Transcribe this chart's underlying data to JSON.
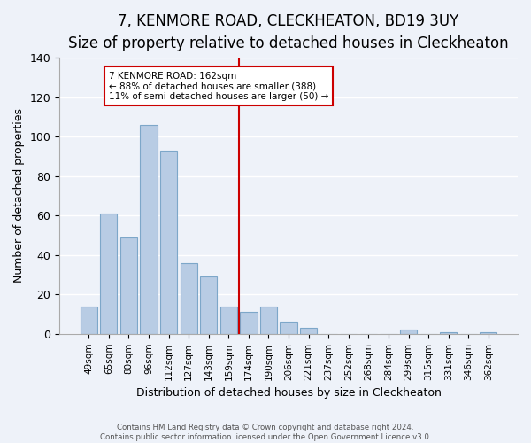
{
  "title": "7, KENMORE ROAD, CLECKHEATON, BD19 3UY",
  "subtitle": "Size of property relative to detached houses in Cleckheaton",
  "xlabel": "Distribution of detached houses by size in Cleckheaton",
  "ylabel": "Number of detached properties",
  "bar_labels": [
    "49sqm",
    "65sqm",
    "80sqm",
    "96sqm",
    "112sqm",
    "127sqm",
    "143sqm",
    "159sqm",
    "174sqm",
    "190sqm",
    "206sqm",
    "221sqm",
    "237sqm",
    "252sqm",
    "268sqm",
    "284sqm",
    "299sqm",
    "315sqm",
    "331sqm",
    "346sqm",
    "362sqm"
  ],
  "bar_values": [
    14,
    61,
    49,
    106,
    93,
    36,
    29,
    14,
    11,
    14,
    6,
    3,
    0,
    0,
    0,
    0,
    2,
    0,
    1,
    0,
    1
  ],
  "bar_color": "#b8cce4",
  "bar_edge_color": "#7da7c9",
  "reference_line_label": "7 KENMORE ROAD: 162sqm",
  "annotation_line1": "← 88% of detached houses are smaller (388)",
  "annotation_line2": "11% of semi-detached houses are larger (50) →",
  "annotation_box_color": "#ffffff",
  "annotation_box_edge": "#cc0000",
  "vline_color": "#cc0000",
  "vline_x": 7.5,
  "ylim": [
    0,
    140
  ],
  "yticks": [
    0,
    20,
    40,
    60,
    80,
    100,
    120,
    140
  ],
  "footer_line1": "Contains HM Land Registry data © Crown copyright and database right 2024.",
  "footer_line2": "Contains public sector information licensed under the Open Government Licence v3.0.",
  "bg_color": "#eef2f9",
  "title_fontsize": 12,
  "subtitle_fontsize": 10
}
